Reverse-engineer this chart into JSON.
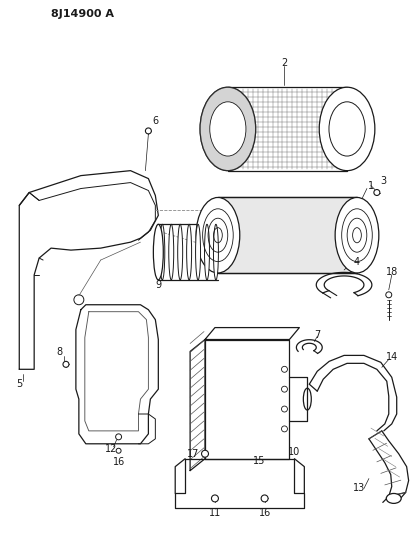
{
  "title": "8J14900 A",
  "background_color": "#ffffff",
  "line_color": "#1a1a1a",
  "fig_width": 4.13,
  "fig_height": 5.33,
  "dpi": 100
}
